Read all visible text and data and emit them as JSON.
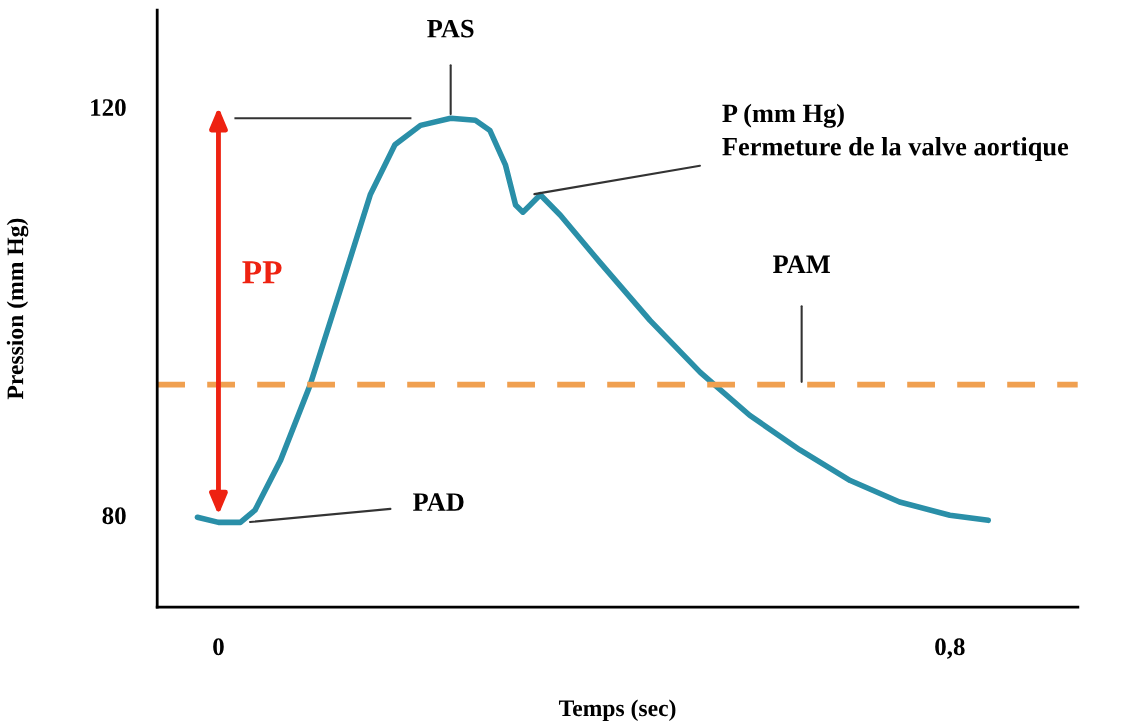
{
  "chart_data": {
    "type": "line",
    "xlabel": "Temps (sec)",
    "ylabel": "Pression (mm Hg)",
    "series": [
      {
        "color": "#2a8fa8",
        "x": [
          -0.023,
          0,
          0.024,
          0.04,
          0.068,
          0.1,
          0.133,
          0.166,
          0.193,
          0.221,
          0.254,
          0.281,
          0.297,
          0.314,
          0.325,
          0.333,
          0.341,
          0.352,
          0.374,
          0.417,
          0.472,
          0.527,
          0.581,
          0.636,
          0.691,
          0.745,
          0.8,
          0.842
        ],
        "values": [
          79.8,
          79.3,
          79.3,
          80.5,
          85.4,
          92.7,
          102,
          111.4,
          116.3,
          118.2,
          118.9,
          118.7,
          117.7,
          114.3,
          110.4,
          109.7,
          110.4,
          111.4,
          109.4,
          104.8,
          99.1,
          94,
          89.8,
          86.4,
          83.4,
          81.3,
          80,
          79.5
        ]
      }
    ],
    "xlim": [
      -0.067,
      0.94
    ],
    "ylim": [
      71,
      129.5
    ],
    "xticks": [
      0,
      {
        "value": 0.8,
        "label": "0,8"
      }
    ],
    "yticks": [
      80,
      120
    ],
    "ref_lines": [
      {
        "axis": "y",
        "value": 118.9,
        "color": "#333333",
        "line_style": "solid"
      },
      {
        "axis": "y",
        "value": 92.8,
        "label": "PAM",
        "color": "#f0a050",
        "line_style": "dashed"
      }
    ],
    "annotations": [
      {
        "text": "PAS",
        "x": 0.254,
        "y": 118.9
      },
      {
        "text": "P (mm Hg)\nFermeture de la valve aortique",
        "x": 0.341,
        "y": 111.4
      },
      {
        "text": "PAD",
        "x": 0.03,
        "y": 79.3
      },
      "PP"
    ],
    "grid": false,
    "marker": "none",
    "line_style": "solid"
  }
}
